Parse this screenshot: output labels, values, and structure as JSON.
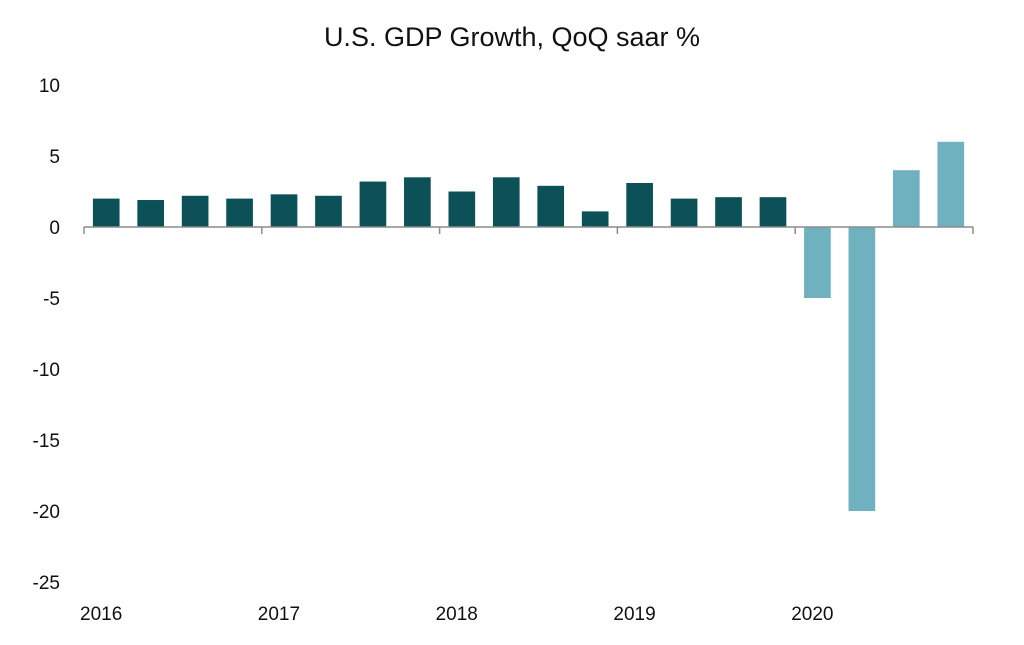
{
  "chart_data": {
    "type": "bar",
    "title": "U.S. GDP Growth, QoQ saar %",
    "ylim": [
      -25,
      10
    ],
    "yticks": [
      "10",
      "5",
      "0",
      "-5",
      "-10",
      "-15",
      "-20",
      "-25"
    ],
    "year_labels": [
      "2016",
      "2017",
      "2018",
      "2019",
      "2020"
    ],
    "categories": [
      "2016 Q1",
      "2016 Q2",
      "2016 Q3",
      "2016 Q4",
      "2017 Q1",
      "2017 Q2",
      "2017 Q3",
      "2017 Q4",
      "2018 Q1",
      "2018 Q2",
      "2018 Q3",
      "2018 Q4",
      "2019 Q1",
      "2019 Q2",
      "2019 Q3",
      "2019 Q4",
      "2020 Q1",
      "2020 Q2",
      "2020 Q3",
      "2020 Q4"
    ],
    "values": [
      2.0,
      1.9,
      2.2,
      2.0,
      2.3,
      2.2,
      3.2,
      3.5,
      2.5,
      3.5,
      2.9,
      1.1,
      3.1,
      2.0,
      2.1,
      2.1,
      -5.0,
      -20.0,
      4.0,
      6.0
    ],
    "grid": false,
    "colors": {
      "pre_2020": "#0b5157",
      "year_2020": "#70b1bf",
      "axis": "#8c8c8c"
    }
  }
}
